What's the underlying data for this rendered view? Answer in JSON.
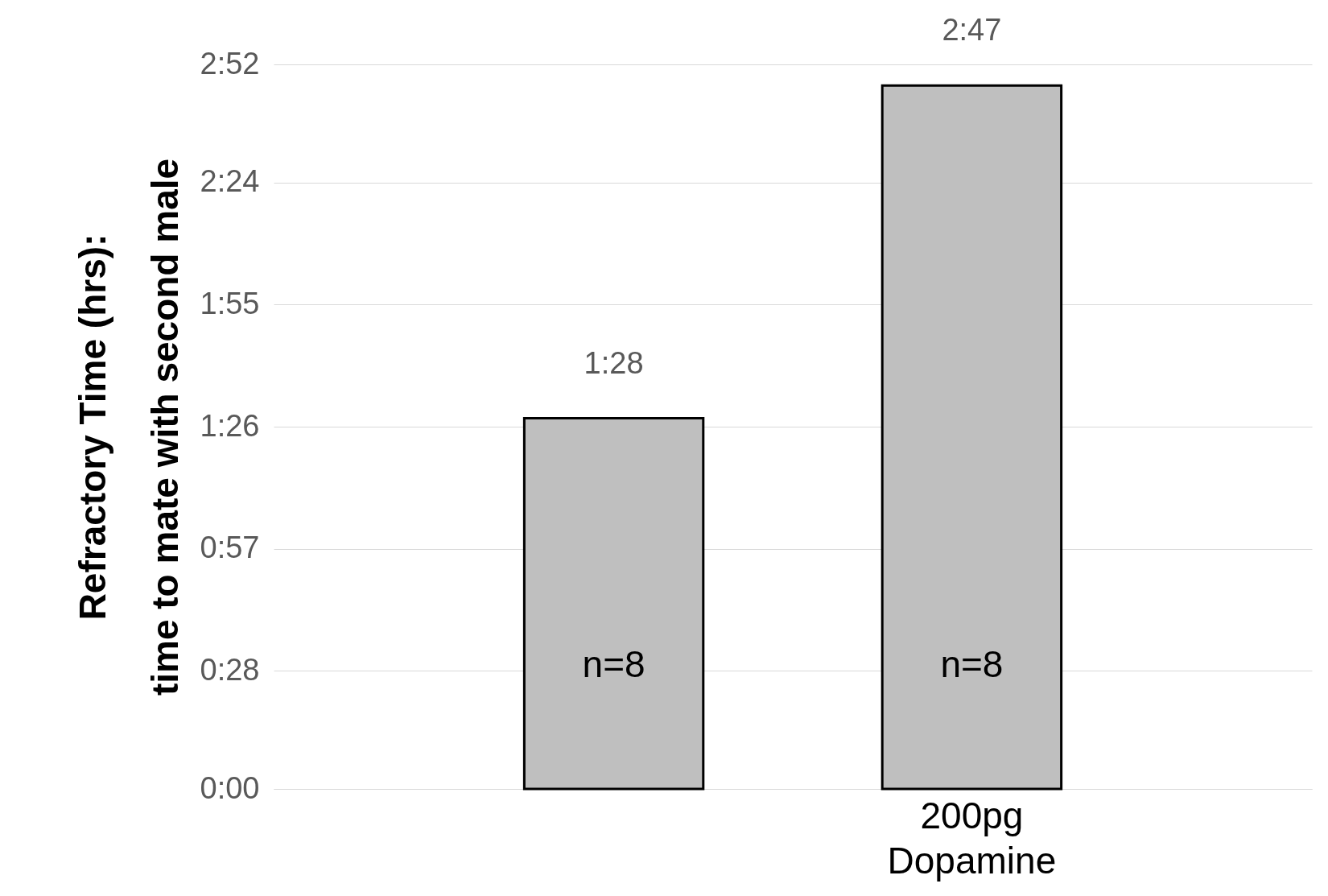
{
  "chart_data": {
    "type": "bar",
    "ylabel": "Refractory Time (hrs):\ntime to mate with second male",
    "categories": [
      null,
      "200pg Dopamine"
    ],
    "values": [
      1.4667,
      2.7833
    ],
    "value_labels": [
      "1:28",
      "2:47"
    ],
    "color": "#bfbfbf",
    "ylim": [
      0,
      2.8667
    ],
    "yticks": [
      {
        "value": 0,
        "label": "0:00"
      },
      {
        "value": 0.4667,
        "label": "0:28"
      },
      {
        "value": 0.95,
        "label": "0:57"
      },
      {
        "value": 1.4333,
        "label": "1:26"
      },
      {
        "value": 1.9167,
        "label": "1:55"
      },
      {
        "value": 2.4,
        "label": "2:24"
      },
      {
        "value": 2.8667,
        "label": "2:52"
      }
    ],
    "annotations": [
      "n=8",
      "n=8"
    ],
    "grid": "y"
  }
}
